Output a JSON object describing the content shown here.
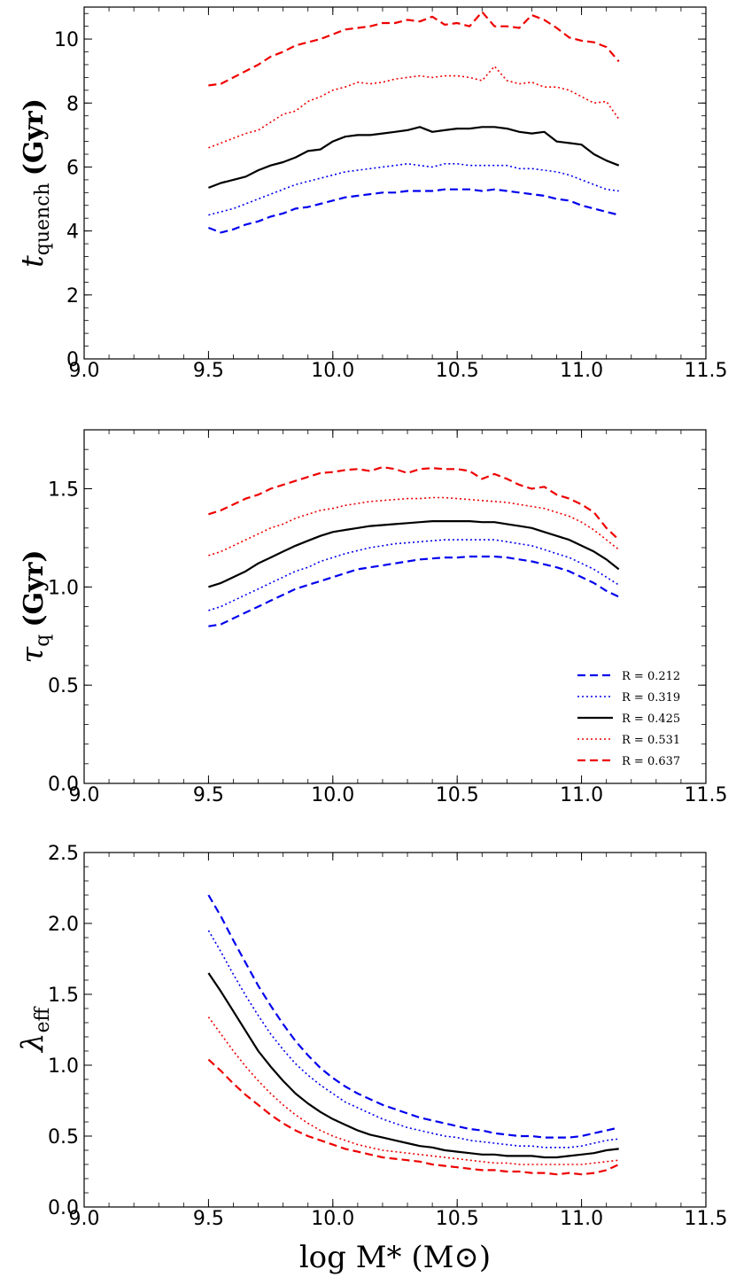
{
  "chart_data": [
    {
      "type": "line",
      "panel": "top",
      "ylabel_main": "t",
      "ylabel_sub": "quench",
      "ylabel_unit": "(Gyr)",
      "xlim": [
        9.0,
        11.5
      ],
      "ylim": [
        0,
        11
      ],
      "xticks": [
        "9.0",
        "9.5",
        "10.0",
        "10.5",
        "11.0",
        "11.5"
      ],
      "xtick_values": [
        9.0,
        9.5,
        10.0,
        10.5,
        11.0,
        11.5
      ],
      "yticks": [
        "0",
        "2",
        "4",
        "6",
        "8",
        "10"
      ],
      "ytick_values": [
        0,
        2,
        4,
        6,
        8,
        10
      ],
      "x": [
        9.5,
        9.55,
        9.6,
        9.65,
        9.7,
        9.75,
        9.8,
        9.85,
        9.9,
        9.95,
        10.0,
        10.05,
        10.1,
        10.15,
        10.2,
        10.25,
        10.3,
        10.35,
        10.4,
        10.45,
        10.5,
        10.55,
        10.6,
        10.65,
        10.7,
        10.75,
        10.8,
        10.85,
        10.9,
        10.95,
        11.0,
        11.05,
        11.1,
        11.15
      ],
      "series": [
        {
          "name": "R = 0.212",
          "color": "#0000ee",
          "dash": "dashed",
          "values": [
            4.1,
            3.95,
            4.05,
            4.2,
            4.3,
            4.45,
            4.55,
            4.7,
            4.75,
            4.85,
            4.95,
            5.05,
            5.1,
            5.15,
            5.2,
            5.2,
            5.25,
            5.25,
            5.25,
            5.3,
            5.3,
            5.3,
            5.25,
            5.3,
            5.25,
            5.2,
            5.15,
            5.1,
            5.0,
            4.95,
            4.8,
            4.7,
            4.6,
            4.5
          ]
        },
        {
          "name": "R = 0.319",
          "color": "#0000ee",
          "dash": "dotted",
          "values": [
            4.5,
            4.6,
            4.7,
            4.85,
            5.0,
            5.15,
            5.3,
            5.45,
            5.55,
            5.65,
            5.75,
            5.85,
            5.9,
            5.95,
            6.0,
            6.05,
            6.1,
            6.05,
            6.0,
            6.1,
            6.1,
            6.05,
            6.05,
            6.05,
            6.05,
            5.95,
            5.95,
            5.9,
            5.85,
            5.75,
            5.6,
            5.45,
            5.3,
            5.25
          ]
        },
        {
          "name": "R = 0.425",
          "color": "#000000",
          "dash": "solid",
          "values": [
            5.35,
            5.5,
            5.6,
            5.7,
            5.9,
            6.05,
            6.15,
            6.3,
            6.5,
            6.55,
            6.8,
            6.95,
            7.0,
            7.0,
            7.05,
            7.1,
            7.15,
            7.25,
            7.1,
            7.15,
            7.2,
            7.2,
            7.25,
            7.25,
            7.2,
            7.1,
            7.05,
            7.1,
            6.8,
            6.75,
            6.7,
            6.4,
            6.2,
            6.05
          ]
        },
        {
          "name": "R = 0.531",
          "color": "#ee0000",
          "dash": "dotted",
          "values": [
            6.6,
            6.75,
            6.9,
            7.05,
            7.15,
            7.4,
            7.65,
            7.75,
            8.05,
            8.2,
            8.4,
            8.5,
            8.65,
            8.6,
            8.65,
            8.75,
            8.8,
            8.85,
            8.8,
            8.85,
            8.85,
            8.8,
            8.7,
            9.15,
            8.7,
            8.6,
            8.65,
            8.5,
            8.5,
            8.4,
            8.2,
            8.0,
            8.05,
            7.5
          ]
        },
        {
          "name": "R = 0.637",
          "color": "#ee0000",
          "dash": "dashed",
          "values": [
            8.55,
            8.6,
            8.8,
            9.0,
            9.2,
            9.45,
            9.6,
            9.8,
            9.9,
            10.0,
            10.15,
            10.3,
            10.35,
            10.4,
            10.5,
            10.5,
            10.6,
            10.55,
            10.7,
            10.45,
            10.5,
            10.4,
            10.85,
            10.4,
            10.4,
            10.35,
            10.75,
            10.6,
            10.35,
            10.05,
            9.95,
            9.9,
            9.75,
            9.3
          ]
        }
      ]
    },
    {
      "type": "line",
      "panel": "middle",
      "ylabel_main": "τ",
      "ylabel_sub": "q",
      "ylabel_unit": "(Gyr)",
      "xlim": [
        9.0,
        11.5
      ],
      "ylim": [
        0.0,
        1.8
      ],
      "xticks": [
        "9.0",
        "9.5",
        "10.0",
        "10.5",
        "11.0",
        "11.5"
      ],
      "xtick_values": [
        9.0,
        9.5,
        10.0,
        10.5,
        11.0,
        11.5
      ],
      "yticks": [
        "0.0",
        "0.5",
        "1.0",
        "1.5"
      ],
      "ytick_values": [
        0.0,
        0.5,
        1.0,
        1.5
      ],
      "legend_position": "lower-right",
      "x": [
        9.5,
        9.55,
        9.6,
        9.65,
        9.7,
        9.75,
        9.8,
        9.85,
        9.9,
        9.95,
        10.0,
        10.05,
        10.1,
        10.15,
        10.2,
        10.25,
        10.3,
        10.35,
        10.4,
        10.45,
        10.5,
        10.55,
        10.6,
        10.65,
        10.7,
        10.75,
        10.8,
        10.85,
        10.9,
        10.95,
        11.0,
        11.05,
        11.1,
        11.15
      ],
      "series": [
        {
          "name": "R = 0.212",
          "color": "#0000ee",
          "dash": "dashed",
          "values": [
            0.8,
            0.81,
            0.84,
            0.87,
            0.9,
            0.93,
            0.96,
            0.99,
            1.01,
            1.03,
            1.05,
            1.07,
            1.09,
            1.1,
            1.11,
            1.12,
            1.13,
            1.14,
            1.145,
            1.15,
            1.15,
            1.155,
            1.155,
            1.155,
            1.15,
            1.14,
            1.13,
            1.115,
            1.1,
            1.08,
            1.05,
            1.02,
            0.98,
            0.95
          ]
        },
        {
          "name": "R = 0.319",
          "color": "#0000ee",
          "dash": "dotted",
          "values": [
            0.88,
            0.9,
            0.93,
            0.96,
            0.99,
            1.02,
            1.05,
            1.08,
            1.1,
            1.13,
            1.15,
            1.17,
            1.185,
            1.2,
            1.21,
            1.22,
            1.225,
            1.23,
            1.235,
            1.24,
            1.24,
            1.24,
            1.24,
            1.24,
            1.23,
            1.22,
            1.21,
            1.19,
            1.17,
            1.15,
            1.12,
            1.09,
            1.05,
            1.01
          ]
        },
        {
          "name": "R = 0.425",
          "color": "#000000",
          "dash": "solid",
          "values": [
            1.0,
            1.02,
            1.05,
            1.08,
            1.12,
            1.15,
            1.18,
            1.21,
            1.235,
            1.26,
            1.28,
            1.29,
            1.3,
            1.31,
            1.315,
            1.32,
            1.325,
            1.33,
            1.335,
            1.335,
            1.335,
            1.335,
            1.33,
            1.33,
            1.32,
            1.31,
            1.3,
            1.28,
            1.26,
            1.24,
            1.21,
            1.18,
            1.14,
            1.09
          ]
        },
        {
          "name": "R = 0.531",
          "color": "#ee0000",
          "dash": "dotted",
          "values": [
            1.16,
            1.18,
            1.21,
            1.24,
            1.27,
            1.3,
            1.32,
            1.35,
            1.37,
            1.39,
            1.4,
            1.415,
            1.425,
            1.435,
            1.44,
            1.445,
            1.45,
            1.45,
            1.455,
            1.455,
            1.45,
            1.445,
            1.44,
            1.435,
            1.43,
            1.42,
            1.41,
            1.4,
            1.38,
            1.36,
            1.33,
            1.29,
            1.24,
            1.19
          ]
        },
        {
          "name": "R = 0.637",
          "color": "#ee0000",
          "dash": "dashed",
          "values": [
            1.37,
            1.39,
            1.42,
            1.45,
            1.47,
            1.5,
            1.52,
            1.54,
            1.56,
            1.58,
            1.585,
            1.595,
            1.6,
            1.59,
            1.61,
            1.6,
            1.58,
            1.6,
            1.605,
            1.6,
            1.6,
            1.59,
            1.55,
            1.575,
            1.55,
            1.52,
            1.5,
            1.51,
            1.47,
            1.45,
            1.42,
            1.38,
            1.3,
            1.24
          ]
        }
      ]
    },
    {
      "type": "line",
      "panel": "bottom",
      "ylabel_main": "λ",
      "ylabel_sub": "eff",
      "ylabel_unit": "",
      "xlabel": "log M* (M⊙)",
      "xlim": [
        9.0,
        11.5
      ],
      "ylim": [
        0.0,
        2.5
      ],
      "xticks": [
        "9.0",
        "9.5",
        "10.0",
        "10.5",
        "11.0",
        "11.5"
      ],
      "xtick_values": [
        9.0,
        9.5,
        10.0,
        10.5,
        11.0,
        11.5
      ],
      "yticks": [
        "0.0",
        "0.5",
        "1.0",
        "1.5",
        "2.0",
        "2.5"
      ],
      "ytick_values": [
        0.0,
        0.5,
        1.0,
        1.5,
        2.0,
        2.5
      ],
      "x": [
        9.5,
        9.55,
        9.6,
        9.65,
        9.7,
        9.75,
        9.8,
        9.85,
        9.9,
        9.95,
        10.0,
        10.05,
        10.1,
        10.15,
        10.2,
        10.25,
        10.3,
        10.35,
        10.4,
        10.45,
        10.5,
        10.55,
        10.6,
        10.65,
        10.7,
        10.75,
        10.8,
        10.85,
        10.9,
        10.95,
        11.0,
        11.05,
        11.1,
        11.15
      ],
      "series": [
        {
          "name": "R = 0.212",
          "color": "#0000ee",
          "dash": "dashed",
          "values": [
            2.2,
            2.05,
            1.88,
            1.72,
            1.56,
            1.42,
            1.29,
            1.17,
            1.07,
            0.98,
            0.91,
            0.85,
            0.8,
            0.76,
            0.72,
            0.69,
            0.66,
            0.63,
            0.61,
            0.59,
            0.57,
            0.55,
            0.54,
            0.52,
            0.51,
            0.5,
            0.5,
            0.49,
            0.49,
            0.49,
            0.5,
            0.52,
            0.54,
            0.56
          ]
        },
        {
          "name": "R = 0.319",
          "color": "#0000ee",
          "dash": "dotted",
          "values": [
            1.95,
            1.8,
            1.64,
            1.49,
            1.35,
            1.22,
            1.11,
            1.01,
            0.93,
            0.86,
            0.8,
            0.74,
            0.7,
            0.66,
            0.62,
            0.59,
            0.56,
            0.54,
            0.52,
            0.5,
            0.49,
            0.47,
            0.46,
            0.45,
            0.44,
            0.43,
            0.43,
            0.42,
            0.42,
            0.42,
            0.43,
            0.45,
            0.47,
            0.48
          ]
        },
        {
          "name": "R = 0.425",
          "color": "#000000",
          "dash": "solid",
          "values": [
            1.65,
            1.52,
            1.38,
            1.24,
            1.1,
            0.99,
            0.89,
            0.8,
            0.73,
            0.67,
            0.62,
            0.58,
            0.54,
            0.51,
            0.49,
            0.47,
            0.45,
            0.43,
            0.42,
            0.4,
            0.39,
            0.38,
            0.37,
            0.37,
            0.36,
            0.36,
            0.36,
            0.35,
            0.35,
            0.36,
            0.37,
            0.38,
            0.4,
            0.41
          ]
        },
        {
          "name": "R = 0.531",
          "color": "#ee0000",
          "dash": "dotted",
          "values": [
            1.34,
            1.22,
            1.1,
            0.99,
            0.89,
            0.8,
            0.72,
            0.65,
            0.59,
            0.54,
            0.5,
            0.47,
            0.44,
            0.42,
            0.4,
            0.39,
            0.38,
            0.37,
            0.36,
            0.35,
            0.34,
            0.33,
            0.32,
            0.31,
            0.31,
            0.3,
            0.3,
            0.3,
            0.3,
            0.3,
            0.3,
            0.31,
            0.32,
            0.33
          ]
        },
        {
          "name": "R = 0.637",
          "color": "#ee0000",
          "dash": "dashed",
          "values": [
            1.04,
            0.96,
            0.87,
            0.79,
            0.72,
            0.65,
            0.59,
            0.54,
            0.5,
            0.47,
            0.44,
            0.41,
            0.39,
            0.37,
            0.35,
            0.34,
            0.33,
            0.32,
            0.3,
            0.29,
            0.28,
            0.27,
            0.26,
            0.26,
            0.25,
            0.25,
            0.24,
            0.24,
            0.23,
            0.24,
            0.23,
            0.24,
            0.26,
            0.3
          ]
        }
      ]
    }
  ]
}
